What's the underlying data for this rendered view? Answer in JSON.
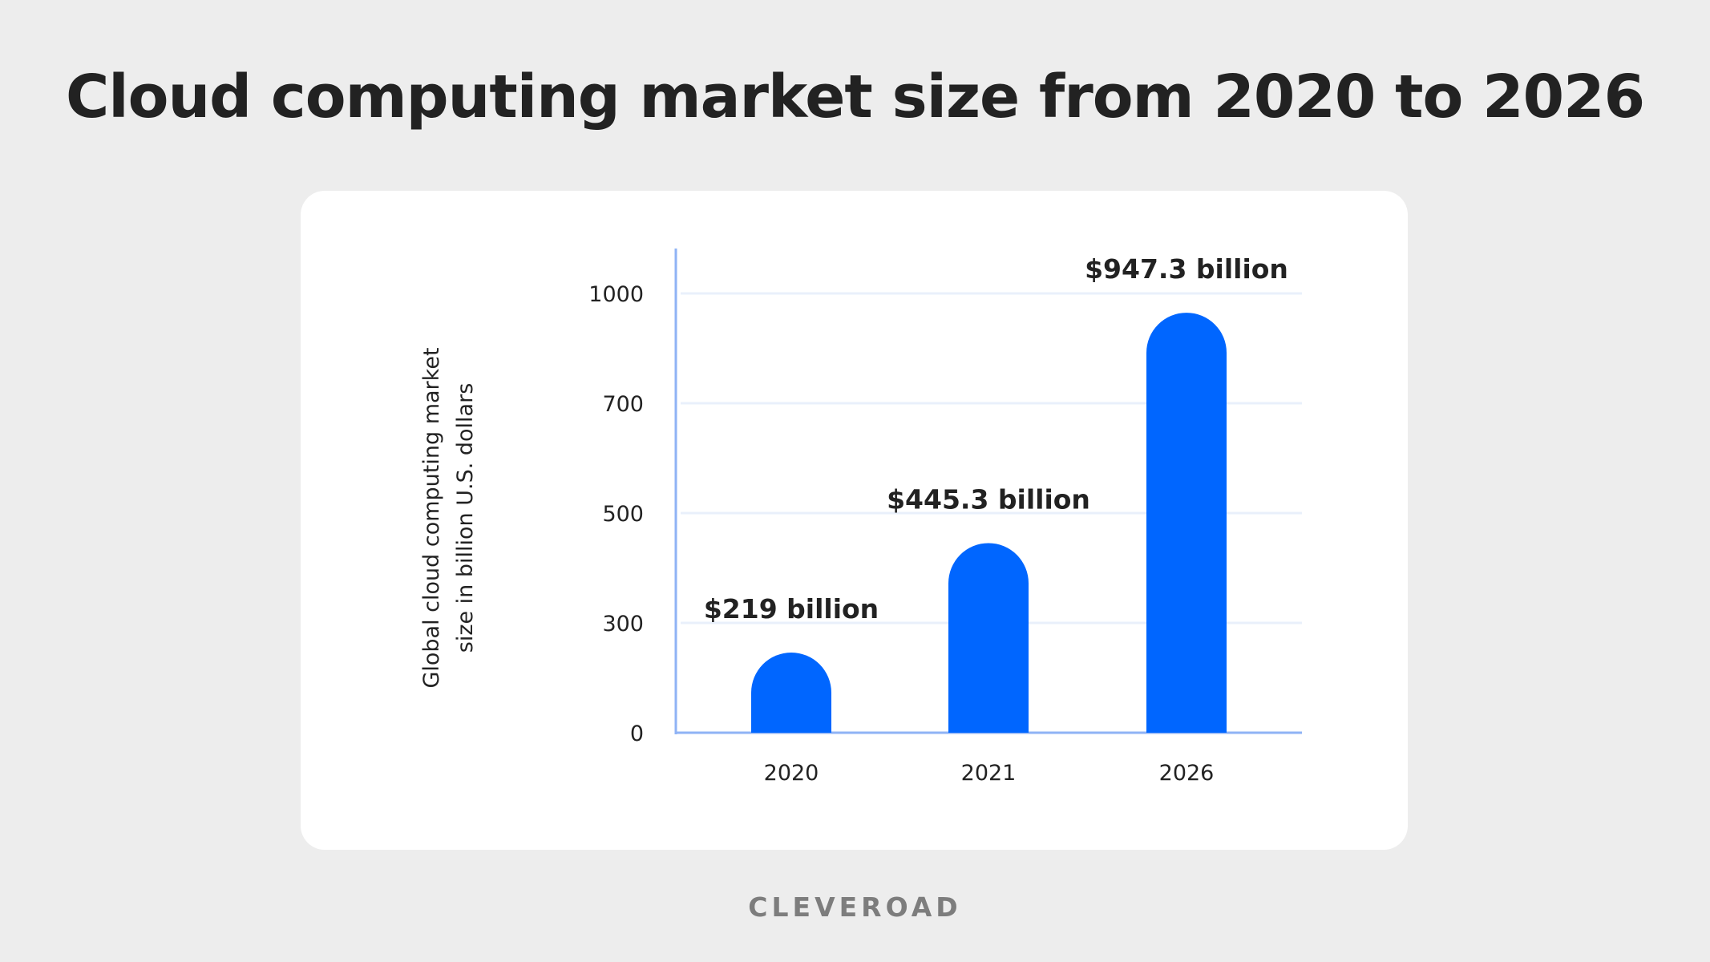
{
  "chart_data": {
    "type": "bar",
    "title": "Cloud computing market size from 2020 to 2026",
    "ylabel": [
      "Global cloud computing market",
      "size in billion U.S. dollars"
    ],
    "xlabel": "",
    "categories": [
      "2020",
      "2021",
      "2026"
    ],
    "values": [
      219,
      445.3,
      947.3
    ],
    "data_labels": [
      "$219 billion",
      "$445.3 billion",
      "$947.3 billion"
    ],
    "yticks": [
      0,
      300,
      500,
      700,
      1000
    ],
    "ylim": [
      0,
      1100
    ],
    "grid": true,
    "bar_color": "#0066ff",
    "axis_color": "#8fb3f5",
    "grid_color": "#e9f0fb"
  },
  "footer": {
    "logo_text": "CLEVEROAD"
  }
}
